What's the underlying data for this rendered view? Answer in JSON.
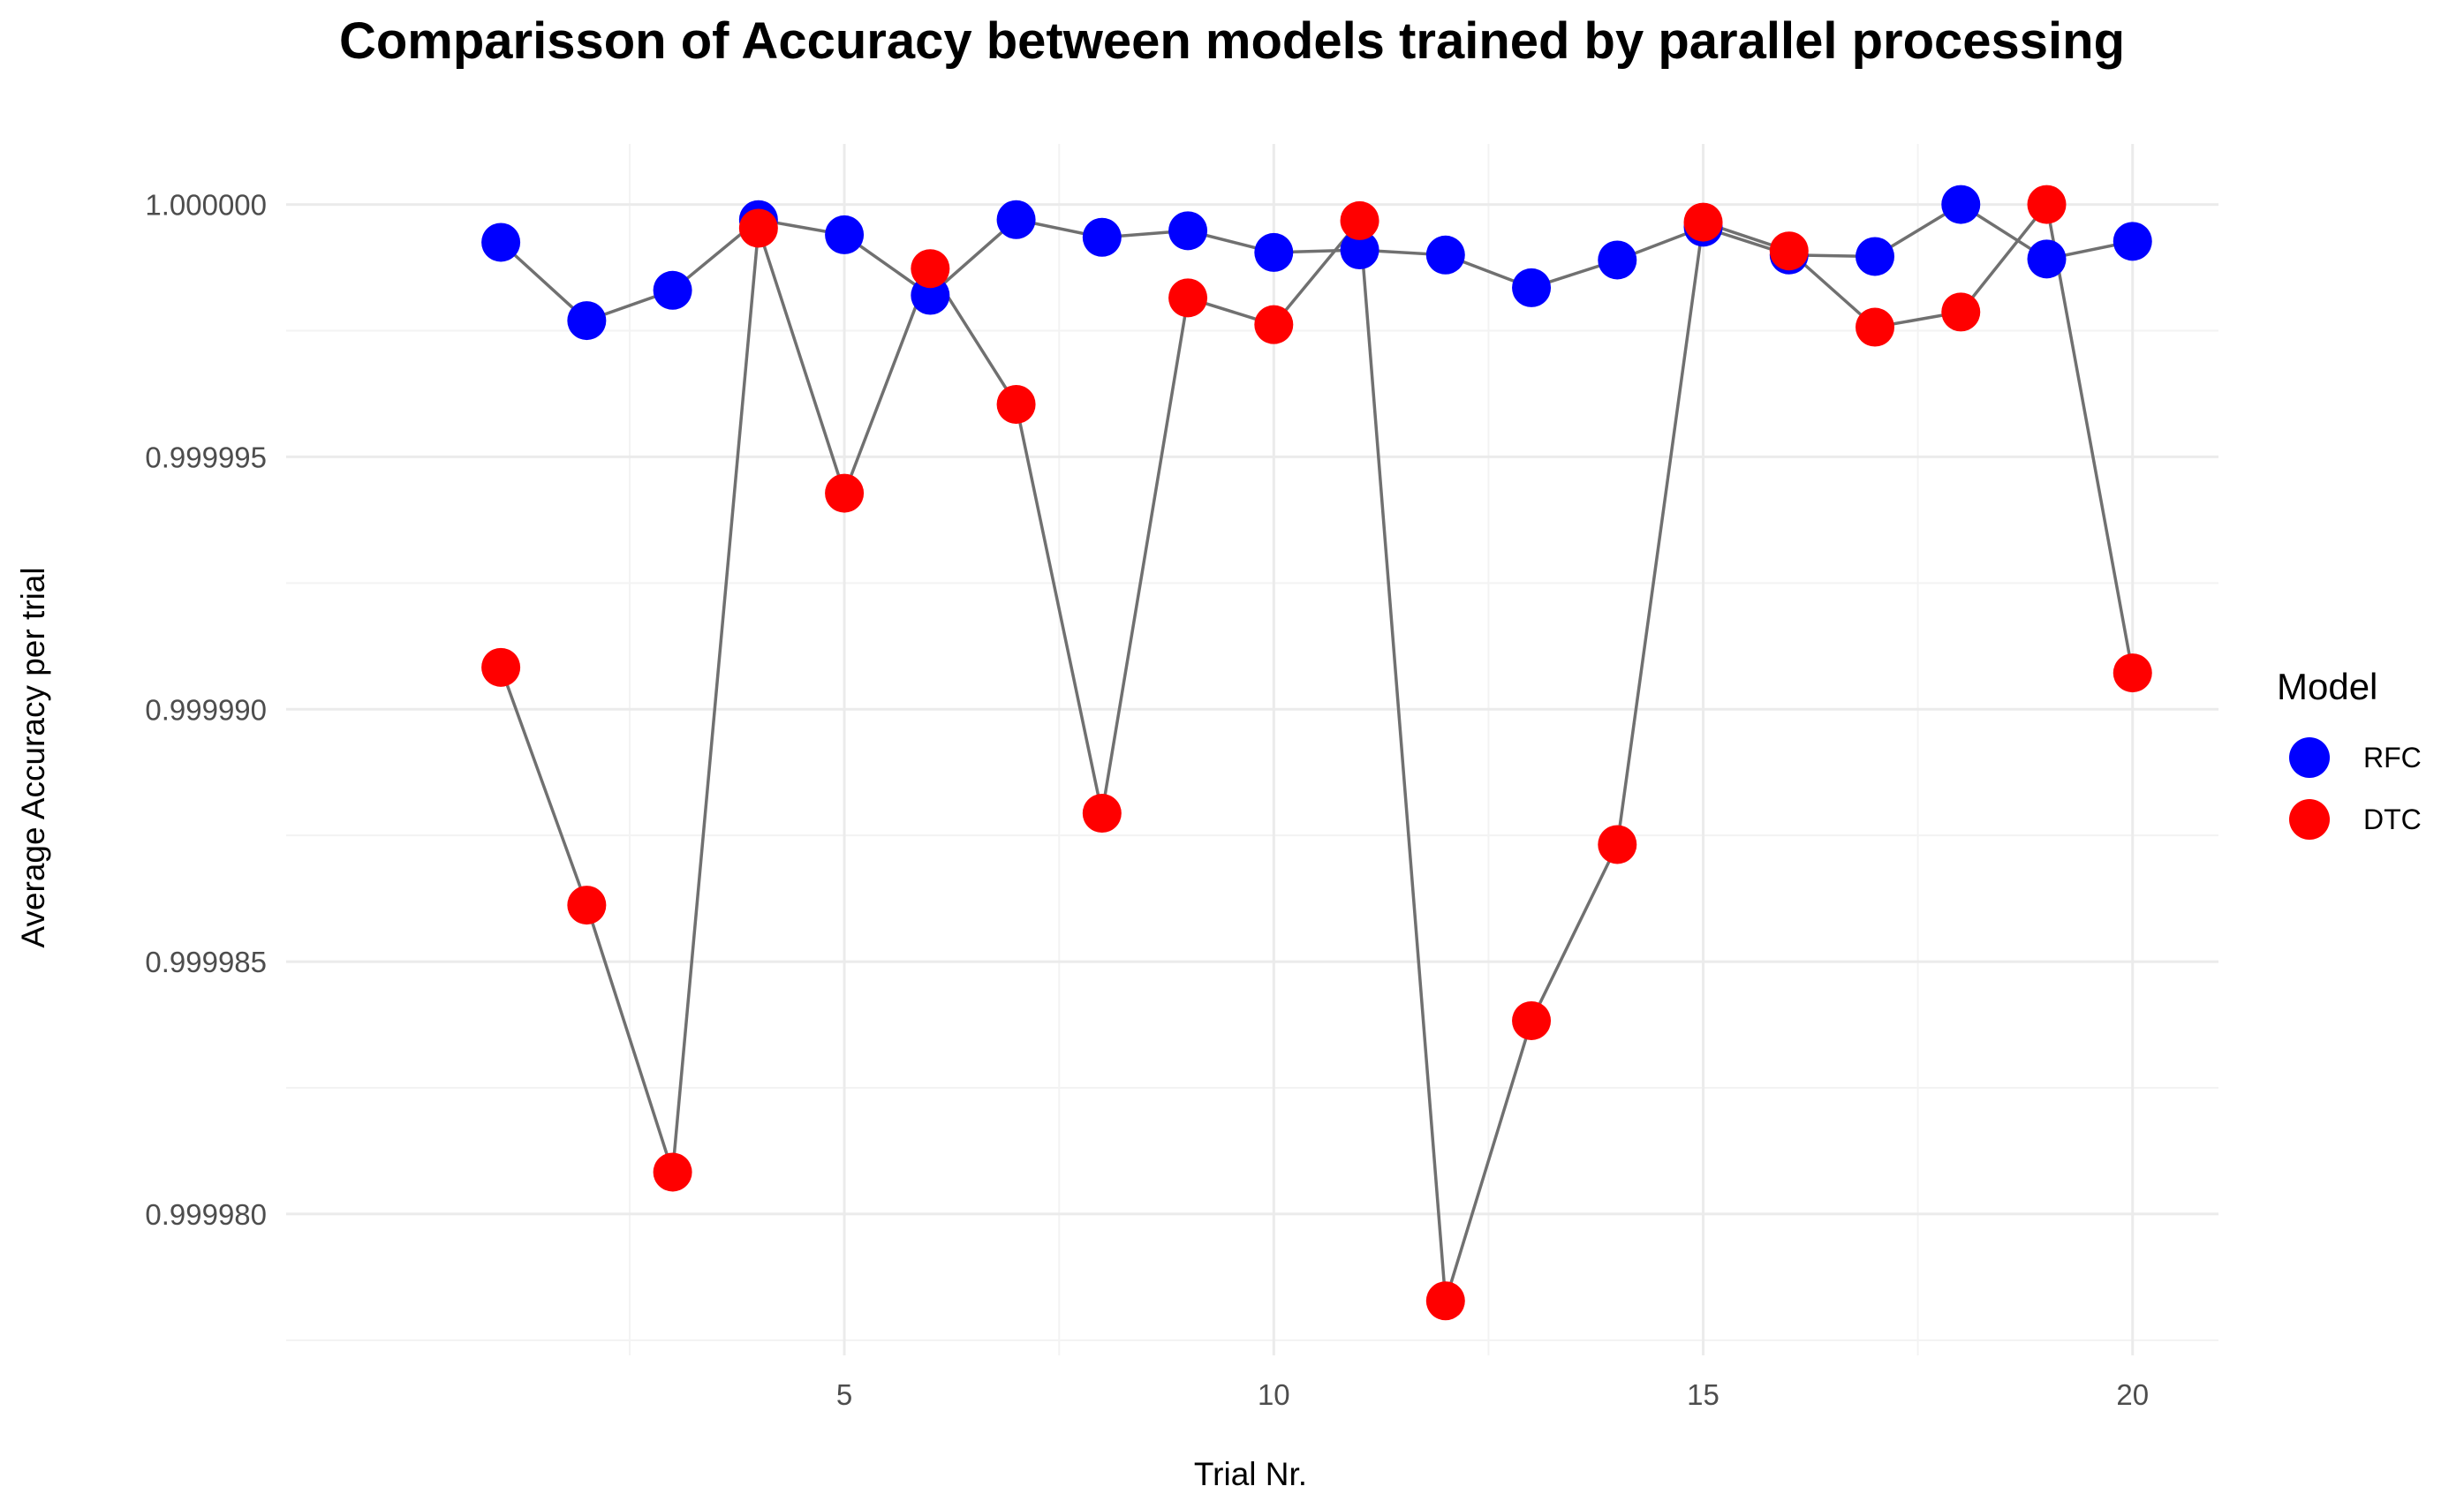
{
  "chart_data": {
    "type": "scatter",
    "title": "Comparisson of Accuracy between models trained by parallel processing",
    "xlabel": "Trial Nr.",
    "ylabel": "Average Accuracy per trial",
    "x": [
      1,
      2,
      3,
      4,
      5,
      6,
      7,
      8,
      9,
      10,
      11,
      12,
      13,
      14,
      15,
      16,
      17,
      18,
      19,
      20
    ],
    "xlim": [
      -1.5,
      21
    ],
    "ylim": [
      0.9999772,
      1.0000012
    ],
    "x_ticks": [
      5,
      10,
      15,
      20
    ],
    "x_tick_labels": [
      "5",
      "10",
      "15",
      "20"
    ],
    "y_ticks": [
      0.99998,
      0.999985,
      0.99999,
      0.999995,
      1.0
    ],
    "y_tick_labels": [
      "0.999980",
      "0.999985",
      "0.999990",
      "0.999995",
      "1.000000"
    ],
    "grid": true,
    "legend_title": "Model",
    "legend_position": "right",
    "connector_color": "#707070",
    "series": [
      {
        "name": "RFC",
        "color": "#0000ff",
        "values": [
          0.99999925,
          0.9999977,
          0.9999983,
          0.9999997,
          0.9999994,
          0.9999982,
          0.9999997,
          0.99999935,
          0.99999948,
          0.99999905,
          0.9999991,
          0.999999,
          0.99999835,
          0.9999989,
          0.99999955,
          0.999999,
          0.99999897,
          1.0,
          0.99999892,
          0.99999927
        ]
      },
      {
        "name": "DTC",
        "color": "#ff0000",
        "values": [
          0.99999083,
          0.99998612,
          0.99998083,
          0.99999953,
          0.99999428,
          0.99999873,
          0.99999604,
          0.99998794,
          0.99999815,
          0.99999762,
          0.99999968,
          0.99997828,
          0.99998383,
          0.99998732,
          0.99999965,
          0.99999908,
          0.99999757,
          0.99999787,
          1.0,
          0.99999072
        ]
      }
    ]
  }
}
